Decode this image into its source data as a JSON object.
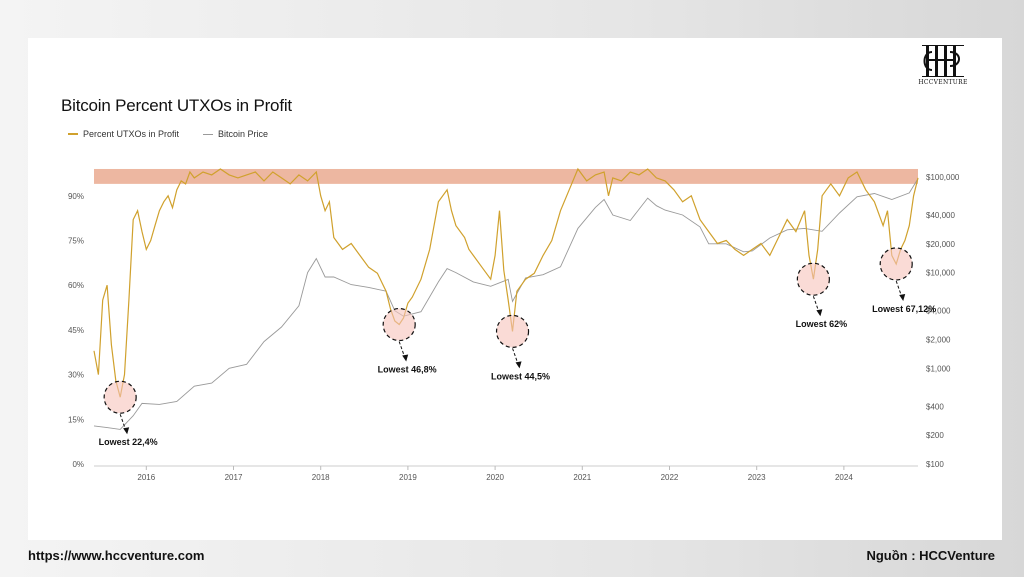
{
  "page": {
    "url_text": "https://www.hccventure.com",
    "source_text": "Nguồn : HCCVenture",
    "logo_text": "HCCVENTURE",
    "logo_icon": "hcc-monogram-icon"
  },
  "chart_data": {
    "type": "line",
    "title": "Bitcoin Percent UTXOs in Profit",
    "legend_position": "top-left",
    "grid": false,
    "colors": {
      "utxo": "#d0a12d",
      "price": "#9a9a9a",
      "band": "#e8a58a"
    },
    "x_ticks": [
      "2016",
      "2017",
      "2018",
      "2019",
      "2020",
      "2021",
      "2022",
      "2023",
      "2024"
    ],
    "x_range": [
      2015.45,
      2024.9
    ],
    "y_left": {
      "ticks": [
        "0%",
        "15%",
        "30%",
        "45%",
        "60%",
        "75%",
        "90%"
      ],
      "range": [
        0,
        100
      ]
    },
    "y_right": {
      "scale": "log",
      "ticks": [
        "$100",
        "$200",
        "$400",
        "$1,000",
        "$2,000",
        "$4,000",
        "$10,000",
        "$20,000",
        "$40,000",
        "$100,000"
      ],
      "tick_values": [
        100,
        200,
        400,
        1000,
        2000,
        4000,
        10000,
        20000,
        40000,
        100000
      ]
    },
    "band": {
      "from": 94,
      "to": 99
    },
    "series": [
      {
        "name": "Percent UTXOs in Profit",
        "axis": "left",
        "x": [
          2015.45,
          2015.5,
          2015.55,
          2015.6,
          2015.65,
          2015.7,
          2015.75,
          2015.8,
          2015.85,
          2015.9,
          2015.95,
          2016.0,
          2016.05,
          2016.1,
          2016.15,
          2016.2,
          2016.25,
          2016.3,
          2016.35,
          2016.4,
          2016.45,
          2016.5,
          2016.55,
          2016.6,
          2016.7,
          2016.8,
          2016.9,
          2017.0,
          2017.1,
          2017.2,
          2017.3,
          2017.4,
          2017.5,
          2017.6,
          2017.7,
          2017.8,
          2017.9,
          2018.0,
          2018.05,
          2018.1,
          2018.15,
          2018.2,
          2018.3,
          2018.4,
          2018.5,
          2018.6,
          2018.7,
          2018.8,
          2018.85,
          2018.9,
          2018.95,
          2019.0,
          2019.05,
          2019.1,
          2019.2,
          2019.3,
          2019.4,
          2019.5,
          2019.55,
          2019.6,
          2019.7,
          2019.75,
          2019.8,
          2019.9,
          2020.0,
          2020.05,
          2020.1,
          2020.15,
          2020.2,
          2020.25,
          2020.3,
          2020.4,
          2020.5,
          2020.6,
          2020.7,
          2020.8,
          2020.9,
          2021.0,
          2021.1,
          2021.2,
          2021.3,
          2021.35,
          2021.4,
          2021.5,
          2021.6,
          2021.7,
          2021.8,
          2021.9,
          2022.0,
          2022.1,
          2022.2,
          2022.3,
          2022.4,
          2022.5,
          2022.6,
          2022.7,
          2022.8,
          2022.9,
          2023.0,
          2023.1,
          2023.2,
          2023.3,
          2023.4,
          2023.5,
          2023.6,
          2023.65,
          2023.7,
          2023.75,
          2023.8,
          2023.85,
          2023.9,
          2024.0,
          2024.1,
          2024.2,
          2024.3,
          2024.4,
          2024.5,
          2024.55,
          2024.6,
          2024.65,
          2024.7,
          2024.75,
          2024.8,
          2024.85,
          2024.9
        ],
        "values": [
          38,
          30,
          55,
          60,
          40,
          28,
          22.4,
          30,
          55,
          82,
          85,
          78,
          72,
          75,
          80,
          85,
          88,
          90,
          86,
          92,
          95,
          94,
          98,
          96,
          98,
          97,
          99,
          97,
          96,
          97,
          98,
          95,
          98,
          96,
          94,
          97,
          95,
          98,
          90,
          85,
          88,
          76,
          72,
          74,
          70,
          66,
          64,
          58,
          52,
          48,
          46.8,
          49,
          54,
          56,
          62,
          72,
          88,
          92,
          85,
          80,
          76,
          72,
          70,
          66,
          62,
          70,
          85,
          65,
          55,
          44.5,
          58,
          62,
          64,
          70,
          75,
          85,
          92,
          99,
          95,
          97,
          98,
          90,
          96,
          95,
          98,
          97,
          99,
          96,
          95,
          92,
          88,
          90,
          82,
          78,
          74,
          75,
          72,
          70,
          72,
          74,
          70,
          76,
          82,
          78,
          85,
          70,
          62,
          72,
          90,
          92,
          94,
          90,
          96,
          98,
          92,
          88,
          80,
          85,
          70,
          67.12,
          72,
          75,
          80,
          90,
          96
        ]
      },
      {
        "name": "Bitcoin Price",
        "axis": "right",
        "x": [
          2015.45,
          2015.6,
          2015.75,
          2015.9,
          2016.0,
          2016.2,
          2016.4,
          2016.6,
          2016.8,
          2017.0,
          2017.2,
          2017.4,
          2017.6,
          2017.8,
          2017.9,
          2018.0,
          2018.1,
          2018.2,
          2018.4,
          2018.6,
          2018.8,
          2018.9,
          2019.0,
          2019.2,
          2019.4,
          2019.5,
          2019.6,
          2019.8,
          2020.0,
          2020.2,
          2020.25,
          2020.4,
          2020.6,
          2020.8,
          2021.0,
          2021.2,
          2021.3,
          2021.4,
          2021.6,
          2021.8,
          2021.9,
          2022.0,
          2022.2,
          2022.4,
          2022.5,
          2022.7,
          2022.9,
          2023.0,
          2023.2,
          2023.4,
          2023.6,
          2023.8,
          2024.0,
          2024.2,
          2024.4,
          2024.6,
          2024.8,
          2024.9
        ],
        "values": [
          250,
          240,
          230,
          320,
          430,
          420,
          450,
          650,
          700,
          1000,
          1100,
          1900,
          2700,
          4500,
          10000,
          14000,
          9000,
          9000,
          7500,
          7000,
          6400,
          4000,
          3500,
          3900,
          8000,
          11000,
          10000,
          8000,
          7200,
          8500,
          5000,
          8800,
          9500,
          11500,
          29000,
          48000,
          58000,
          40000,
          35000,
          60000,
          50000,
          45000,
          40000,
          30000,
          20000,
          20000,
          16500,
          16800,
          23000,
          28000,
          29000,
          27000,
          42000,
          62000,
          67000,
          58000,
          68000,
          96000
        ]
      }
    ],
    "annotations": [
      {
        "label": "Lowest 22,4%",
        "x": 2015.75,
        "y": 22.4
      },
      {
        "label": "Lowest 46,8%",
        "x": 2018.95,
        "y": 46.8
      },
      {
        "label": "Lowest 44,5%",
        "x": 2020.25,
        "y": 44.5
      },
      {
        "label": "Lowest 62%",
        "x": 2023.7,
        "y": 62
      },
      {
        "label": "Lowest 67,12%",
        "x": 2024.65,
        "y": 67.12
      }
    ]
  }
}
